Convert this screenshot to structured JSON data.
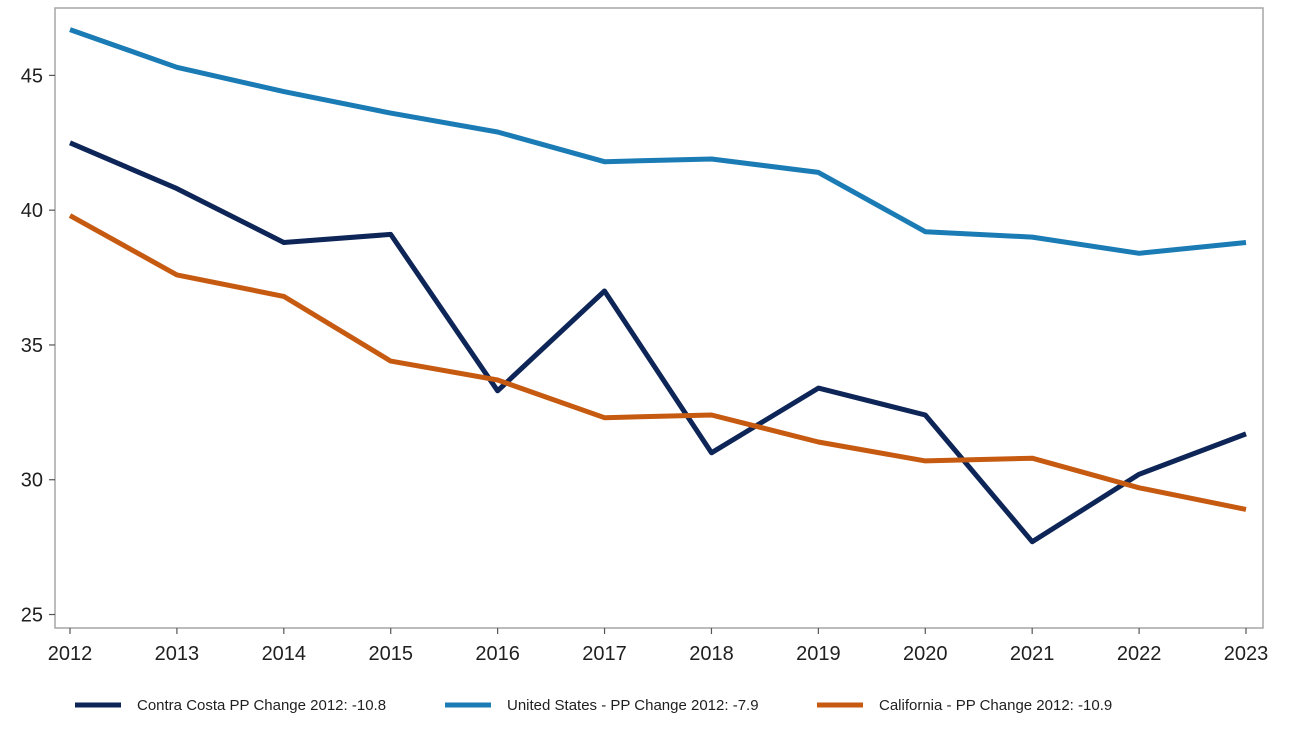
{
  "chart_data": {
    "type": "line",
    "x": [
      2012,
      2013,
      2014,
      2015,
      2016,
      2017,
      2018,
      2019,
      2020,
      2021,
      2022,
      2023
    ],
    "series": [
      {
        "name": "Contra Costa PP Change 2012: -10.8",
        "color": "#0e2557",
        "values": [
          42.5,
          40.8,
          38.8,
          39.1,
          33.3,
          37.0,
          31.0,
          33.4,
          32.4,
          27.7,
          30.2,
          31.7
        ]
      },
      {
        "name": "United States - PP Change 2012: -7.9",
        "color": "#1a7bb5",
        "values": [
          46.7,
          45.3,
          44.4,
          43.6,
          42.9,
          41.8,
          41.9,
          41.4,
          39.2,
          39.0,
          38.4,
          38.8
        ]
      },
      {
        "name": "California - PP Change 2012: -10.9",
        "color": "#c65a11",
        "values": [
          39.8,
          37.6,
          36.8,
          34.4,
          33.7,
          32.3,
          32.4,
          31.4,
          30.7,
          30.8,
          29.7,
          28.9
        ]
      }
    ],
    "xticks": [
      "2012",
      "2013",
      "2014",
      "2015",
      "2016",
      "2017",
      "2018",
      "2019",
      "2020",
      "2021",
      "2022",
      "2023"
    ],
    "yticks": [
      "25",
      "30",
      "35",
      "40",
      "45"
    ],
    "ylim": [
      24.5,
      47.5
    ],
    "grid": false,
    "legend": "bottom"
  }
}
